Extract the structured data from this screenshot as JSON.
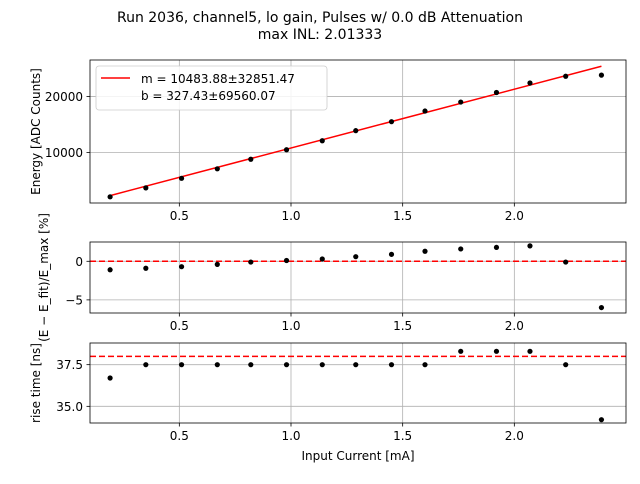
{
  "figure": {
    "title_line1": "Run 2036, channel5, lo gain, Pulses w/ 0.0 dB Attenuation",
    "title_line2": "max INL: 2.01333"
  },
  "chart_data": [
    {
      "type": "scatter",
      "name": "energy",
      "ylabel": "Energy [ADC Counts]",
      "xlim": [
        0.1,
        2.5
      ],
      "ylim": [
        1000,
        26500
      ],
      "xticks": [
        0.5,
        1.0,
        1.5,
        2.0
      ],
      "xtick_labels": [
        "0.5",
        "1.0",
        "1.5",
        "2.0"
      ],
      "yticks": [
        10000,
        20000
      ],
      "ytick_labels": [
        "10000",
        "20000"
      ],
      "grid": true,
      "legend_placement": "upper-left",
      "legend": [
        {
          "label": "m = 10483.88±32851.47",
          "color": "#ff0000",
          "kind": "line"
        },
        {
          "label": "b = 327.43±69560.07",
          "color": "#ff0000",
          "kind": "none"
        }
      ],
      "points": {
        "x": [
          0.19,
          0.35,
          0.51,
          0.67,
          0.82,
          0.98,
          1.14,
          1.29,
          1.45,
          1.6,
          1.76,
          1.92,
          2.07,
          2.23,
          2.39
        ],
        "y": [
          2100,
          3700,
          5400,
          7100,
          8800,
          10500,
          12100,
          13900,
          15500,
          17400,
          19000,
          20700,
          22400,
          23600,
          23800
        ],
        "color": "#000000"
      },
      "fit_line": {
        "x": [
          0.19,
          2.39
        ],
        "y": [
          2319,
          25382
        ],
        "color": "#ff0000"
      }
    },
    {
      "type": "scatter",
      "name": "residual",
      "ylabel": "(E − E_fit)/E_max [%]",
      "xlim": [
        0.1,
        2.5
      ],
      "ylim": [
        -6.7,
        2.5
      ],
      "xticks": [
        0.5,
        1.0,
        1.5,
        2.0
      ],
      "xtick_labels": [
        "0.5",
        "1.0",
        "1.5",
        "2.0"
      ],
      "yticks": [
        -5,
        0
      ],
      "ytick_labels": [
        "−5",
        "0"
      ],
      "grid": true,
      "hline": {
        "y": 0,
        "color": "#ff0000",
        "style": "dashed"
      },
      "points": {
        "x": [
          0.19,
          0.35,
          0.51,
          0.67,
          0.82,
          0.98,
          1.14,
          1.29,
          1.45,
          1.6,
          1.76,
          1.92,
          2.07,
          2.23,
          2.39
        ],
        "y": [
          -1.1,
          -0.9,
          -0.7,
          -0.4,
          -0.1,
          0.1,
          0.3,
          0.6,
          0.9,
          1.3,
          1.6,
          1.8,
          2.0,
          -0.1,
          -6.0
        ],
        "color": "#000000"
      }
    },
    {
      "type": "scatter",
      "name": "rise_time",
      "ylabel": "rise time [ns]",
      "xlabel": "Input Current [mA]",
      "xlim": [
        0.1,
        2.5
      ],
      "ylim": [
        34.0,
        38.8
      ],
      "xticks": [
        0.5,
        1.0,
        1.5,
        2.0
      ],
      "xtick_labels": [
        "0.5",
        "1.0",
        "1.5",
        "2.0"
      ],
      "yticks": [
        35.0,
        37.5
      ],
      "ytick_labels": [
        "35.0",
        "37.5"
      ],
      "grid": true,
      "hline": {
        "y": 38.0,
        "color": "#ff0000",
        "style": "dashed"
      },
      "points": {
        "x": [
          0.19,
          0.35,
          0.51,
          0.67,
          0.82,
          0.98,
          1.14,
          1.29,
          1.45,
          1.6,
          1.76,
          1.92,
          2.07,
          2.23,
          2.39
        ],
        "y": [
          36.7,
          37.5,
          37.5,
          37.5,
          37.5,
          37.5,
          37.5,
          37.5,
          37.5,
          37.5,
          38.3,
          38.3,
          38.3,
          37.5,
          34.2
        ],
        "color": "#000000"
      }
    }
  ]
}
